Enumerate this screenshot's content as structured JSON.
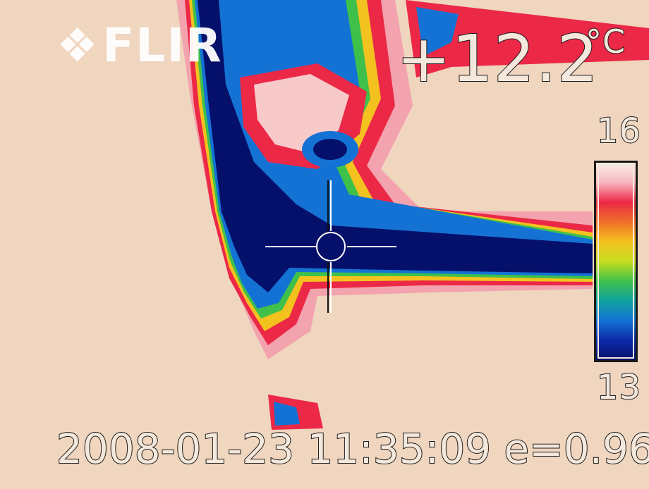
{
  "camera": {
    "logo_text": "FLIR"
  },
  "measurement": {
    "spot_temperature": "+12.2",
    "unit": "°C"
  },
  "scale": {
    "max_label": "16",
    "min_label": "13",
    "palette": [
      "#fbeee6",
      "#f7b7bf",
      "#ec2847",
      "#f0702a",
      "#f4c21f",
      "#c7dd1f",
      "#3fc04a",
      "#10a2a0",
      "#1472d4",
      "#0c2aa8",
      "#05106a"
    ]
  },
  "capture": {
    "timestamp_emissivity": "2008-01-23 11:35:09 e=0.96"
  },
  "colors": {
    "background": "#f0d5bf",
    "cold": "#05106a",
    "hot": "#ec2847"
  }
}
